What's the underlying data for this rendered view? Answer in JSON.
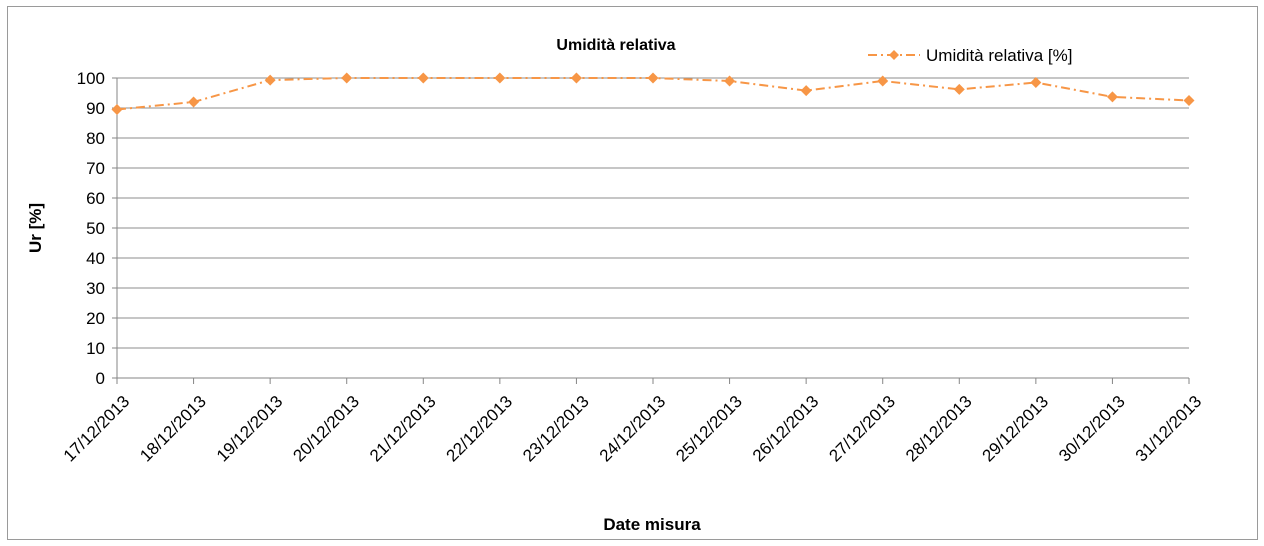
{
  "chart_data": {
    "type": "line",
    "title": "Umidità relativa",
    "xlabel": "Date misura",
    "ylabel": "Ur [%]",
    "ylim": [
      0,
      100
    ],
    "yticks": [
      0,
      10,
      20,
      30,
      40,
      50,
      60,
      70,
      80,
      90,
      100
    ],
    "grid": true,
    "legend_position": "top-right",
    "categories": [
      "17/12/2013",
      "18/12/2013",
      "19/12/2013",
      "20/12/2013",
      "21/12/2013",
      "22/12/2013",
      "23/12/2013",
      "24/12/2013",
      "25/12/2013",
      "26/12/2013",
      "27/12/2013",
      "28/12/2013",
      "29/12/2013",
      "30/12/2013",
      "31/12/2013"
    ],
    "series": [
      {
        "name": "Umidità relativa [%]",
        "color": "#f79646",
        "line_style": "dash-dot",
        "marker": "diamond",
        "values": [
          89.5,
          92,
          99.3,
          100,
          100,
          100,
          100,
          100,
          99,
          95.8,
          99,
          96.2,
          98.5,
          93.7,
          92.5
        ]
      }
    ]
  }
}
